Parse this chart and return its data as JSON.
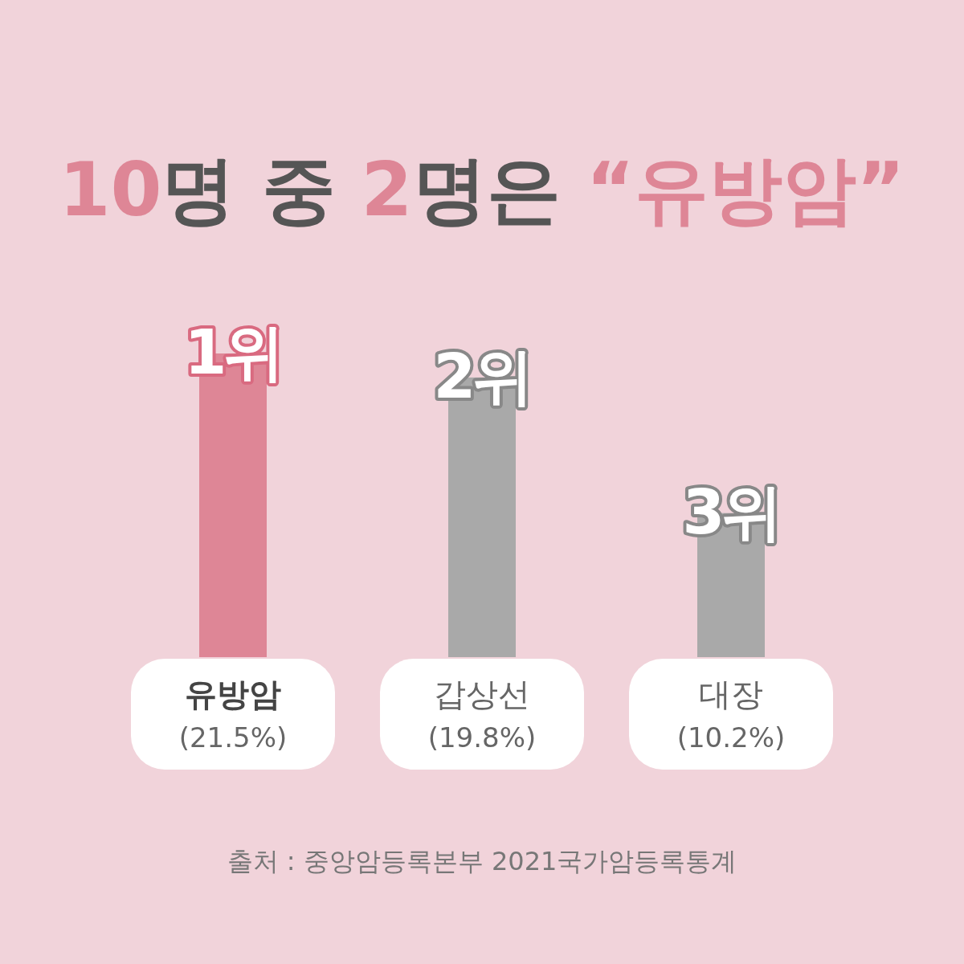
{
  "chart_data": {
    "type": "bar",
    "title": "10명 중 2명은 “유방암”",
    "categories": [
      "유방암",
      "갑상선",
      "대장"
    ],
    "values": [
      21.5,
      19.8,
      10.2
    ],
    "colors": [
      "#de8696",
      "#a9a9a9",
      "#a9a9a9"
    ],
    "value_labels": [
      "(21.5%)",
      "(19.8%)",
      "(10.2%)"
    ],
    "annotations": [
      {
        "text": "1위",
        "x": "유방암",
        "y": 21.5
      },
      {
        "text": "2위",
        "x": "갑상선",
        "y": 19.8
      },
      {
        "text": "3위",
        "x": "대장",
        "y": 10.2
      },
      "출처 : 중앙암등록본부 2021국가암등록통계"
    ]
  }
}
